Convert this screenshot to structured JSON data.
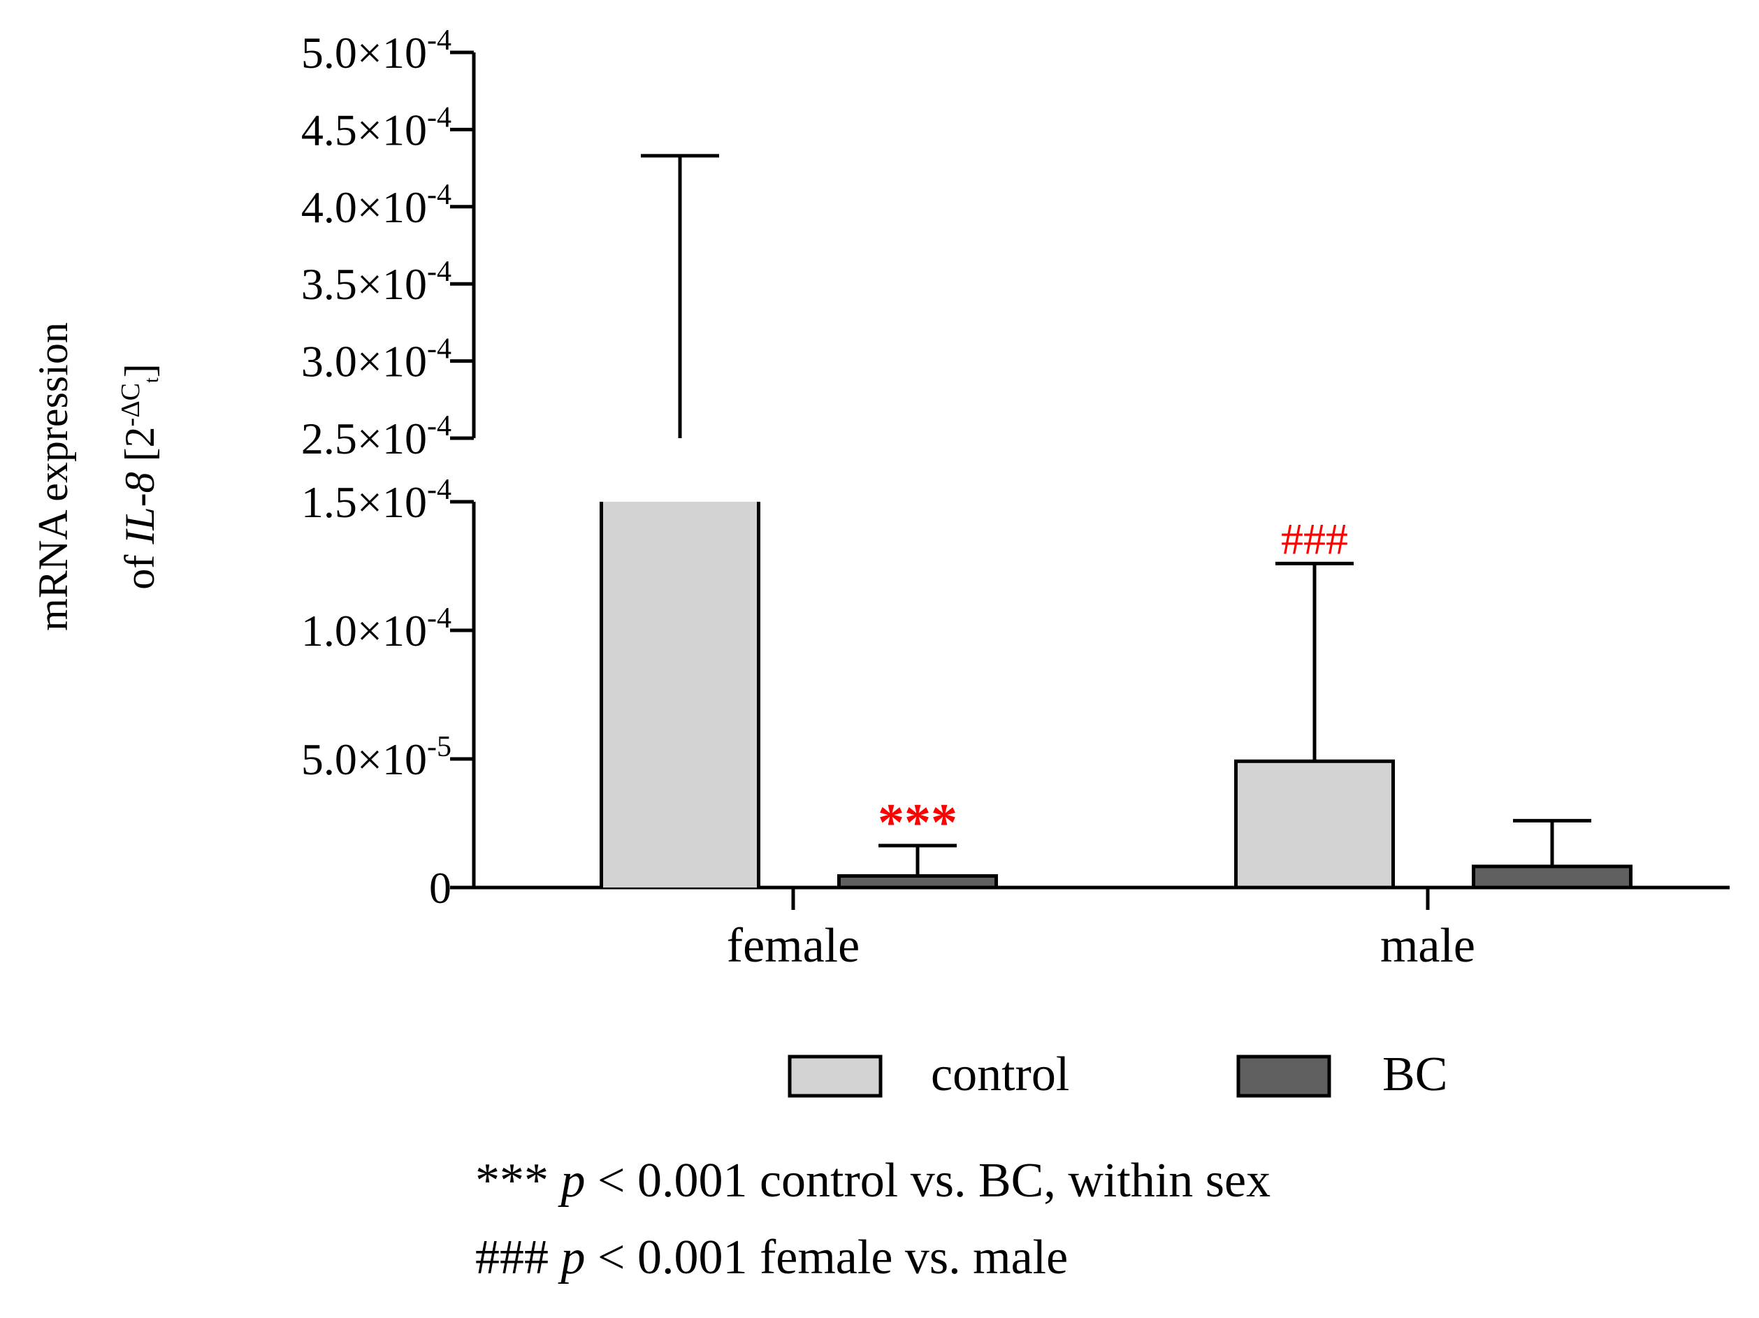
{
  "chart_data": {
    "type": "bar",
    "title": "",
    "xlabel": "",
    "ylabel": {
      "line1": "mRNA expression",
      "line2_prefix": "of ",
      "line2_gene": "IL-8",
      "line2_unit_open": " [2",
      "line2_unit_sup": "-ΔC",
      "line2_unit_sub": "t",
      "line2_unit_close": "]"
    },
    "categories": [
      "female",
      "male"
    ],
    "series": [
      {
        "name": "control",
        "color": "#d3d3d3",
        "values": [
          0.000182,
          4.91e-05
        ],
        "error_upper": [
          0.000433,
          0.000126
        ]
      },
      {
        "name": "BC",
        "color": "#606060",
        "values": [
          4.5e-06,
          8.2e-06
        ],
        "error_upper": [
          1.63e-05,
          2.6e-05
        ]
      }
    ],
    "axis": {
      "break": [
        0.00015,
        0.00025
      ],
      "lower_range": [
        0,
        0.00015
      ],
      "upper_range": [
        0.00025,
        0.0005
      ],
      "lower_ticks": [
        {
          "value": 0,
          "mantissa": "0",
          "exponent": ""
        },
        {
          "value": 5e-05,
          "mantissa": "5.0×10",
          "exponent": "-5"
        },
        {
          "value": 0.0001,
          "mantissa": "1.0×10",
          "exponent": "-4"
        },
        {
          "value": 0.00015,
          "mantissa": "1.5×10",
          "exponent": "-4"
        }
      ],
      "upper_ticks": [
        {
          "value": 0.00025,
          "mantissa": "2.5×10",
          "exponent": "-4"
        },
        {
          "value": 0.0003,
          "mantissa": "3.0×10",
          "exponent": "-4"
        },
        {
          "value": 0.00035,
          "mantissa": "3.5×10",
          "exponent": "-4"
        },
        {
          "value": 0.0004,
          "mantissa": "4.0×10",
          "exponent": "-4"
        },
        {
          "value": 0.00045,
          "mantissa": "4.5×10",
          "exponent": "-4"
        },
        {
          "value": 0.0005,
          "mantissa": "5.0×10",
          "exponent": "-4"
        }
      ]
    },
    "annotations": [
      {
        "text": "***",
        "category": "female",
        "series": "BC",
        "color": "#ff0000",
        "bold": true
      },
      {
        "text": "###",
        "category": "male",
        "series": "control",
        "color": "#ff0000",
        "bold": false
      }
    ],
    "legend": {
      "placement": "bottom-center",
      "items": [
        {
          "label": "control",
          "color": "#d3d3d3"
        },
        {
          "label": "BC",
          "color": "#606060"
        }
      ]
    },
    "footnotes": [
      {
        "symbol": "***",
        "p": "p",
        "rest": " < 0.001 control vs. BC, within sex"
      },
      {
        "symbol": "###",
        "p": "p",
        "rest": " < 0.001 female vs. male"
      }
    ]
  }
}
